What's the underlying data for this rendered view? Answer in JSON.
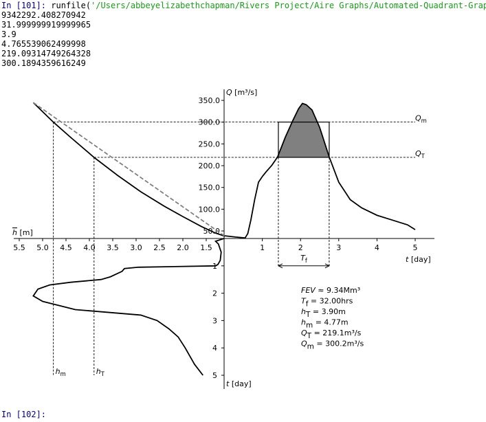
{
  "console": {
    "output_lines": [
      "9342292.408270942",
      "31.999999919999965",
      "3.9",
      "4.765539062499998",
      "219.09314749264328",
      "300.1894359616249"
    ],
    "prompt": "In [101]:",
    "command": "runfile(",
    "path": "'/Users/abbeyelizabethchapman/Rivers Project/Aire Graphs/Automated-Quadrant-Grap",
    "next_prompt": "In [102]:"
  },
  "figure": {
    "q_label": {
      "sym": "Q",
      "rest": " [m³/s]"
    },
    "h_label": {
      "sym": "h",
      "rest": " [m]"
    },
    "t_label": {
      "sym": "t",
      "rest": " [day]"
    },
    "t2_label": {
      "sym": "t",
      "rest": " [day]"
    },
    "q_ticks": [
      {
        "value": 50,
        "label": "50.0"
      },
      {
        "value": 100,
        "label": "100.0"
      },
      {
        "value": 150,
        "label": "150.0"
      },
      {
        "value": 200,
        "label": "200.0"
      },
      {
        "value": 250,
        "label": "250.0"
      },
      {
        "value": 300,
        "label": "300.0"
      },
      {
        "value": 350,
        "label": "350.0"
      }
    ],
    "h_ticks": [
      5.5,
      {
        "value": 5,
        "label": "5.0"
      },
      4.5,
      {
        "value": 4,
        "label": "4.0"
      },
      3.5,
      {
        "value": 3,
        "label": "3.0"
      },
      2.5,
      {
        "value": 2,
        "label": "2.0"
      },
      1.5
    ],
    "t_ticks": [
      1,
      2,
      3,
      4,
      5
    ],
    "t2_ticks": [
      1,
      2,
      3,
      4,
      5
    ],
    "hydrograph": {
      "t": [
        0,
        0.3,
        0.55,
        0.62,
        0.7,
        0.8,
        0.9,
        1.0,
        1.1,
        1.25,
        1.4,
        1.6,
        1.8,
        1.95,
        2.05,
        2.15,
        2.3,
        2.5,
        2.75,
        3.0,
        3.3,
        3.6,
        4.0,
        4.4,
        4.8,
        5.0
      ],
      "Q": [
        39,
        36,
        34,
        44,
        75,
        122,
        162,
        175,
        186,
        201,
        220,
        265,
        304,
        331,
        343,
        340,
        328,
        288,
        220,
        162,
        122,
        103,
        86,
        75,
        64,
        53
      ]
    },
    "rating": {
      "h": [
        5.2,
        4.77,
        4.4,
        3.9,
        3.4,
        2.9,
        2.4,
        2.0,
        1.6,
        1.3,
        1.1
      ],
      "Q": [
        345,
        300,
        265,
        219,
        178,
        140,
        107,
        83,
        60,
        45,
        38
      ]
    },
    "linear": {
      "h": [
        5.2,
        1.1
      ],
      "Q": [
        345,
        38
      ]
    },
    "stage": {
      "t": [
        0,
        0.1,
        0.2,
        0.5,
        0.8,
        0.95,
        1.0,
        1.05,
        1.1,
        1.2,
        1.4,
        1.5,
        1.6,
        1.7,
        1.85,
        2.1,
        2.3,
        2.6,
        2.8,
        3.0,
        3.3,
        3.6,
        4.0,
        4.3,
        4.6,
        5.0
      ],
      "h": [
        1.12,
        1.3,
        1.24,
        1.18,
        1.2,
        1.25,
        1.3,
        2.95,
        3.25,
        3.3,
        3.55,
        3.75,
        4.4,
        4.85,
        5.1,
        5.2,
        5.0,
        4.3,
        2.9,
        2.55,
        2.3,
        2.1,
        1.95,
        1.85,
        1.75,
        1.57
      ]
    },
    "Qm": 300.2,
    "QT": 219.1,
    "hm": 4.77,
    "hT": 3.9,
    "tf_window": [
      1.42,
      2.75
    ],
    "Qm_label": {
      "sym": "Q",
      "sub": "m"
    },
    "QT_label": {
      "sym": "Q",
      "sub": "T"
    },
    "hm_label": {
      "sym": "h",
      "sub": "m"
    },
    "hT_label": {
      "sym": "h",
      "sub": "T"
    },
    "Tf_label": {
      "sym": "T",
      "sub": "f"
    },
    "annotations": [
      {
        "sym": "FEV",
        "rest": " ≈ 9.34Mm³"
      },
      {
        "sym": "T",
        "sub": "f",
        "rest": " = 32.00hrs"
      },
      {
        "sym": "h",
        "sub": "T",
        "rest": " = 3.90m"
      },
      {
        "sym": "h",
        "sub": "m",
        "rest": " = 4.77m"
      },
      {
        "sym": "Q",
        "sub": "T",
        "rest": " = 219.1m³/s"
      },
      {
        "sym": "Q",
        "sub": "m",
        "rest": " = 300.2m³/s"
      }
    ]
  }
}
